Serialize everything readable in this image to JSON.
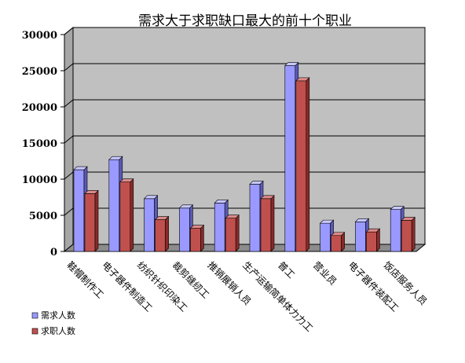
{
  "chart_data": {
    "type": "bar",
    "title": "需求大于求职缺口最大的前十个职业",
    "categories": [
      "鞋帽制作工",
      "电子器件制造工",
      "纺织针织印染工",
      "裁剪缝纫工",
      "推销展销人员",
      "生产运输简单体力力工",
      "普工",
      "营业员",
      "电子器件装配工",
      "饭店服务人员"
    ],
    "series": [
      {
        "name": "需求人数",
        "values": [
          11300,
          12700,
          7300,
          6000,
          6700,
          9300,
          25700,
          3900,
          4100,
          5800
        ]
      },
      {
        "name": "求职人数",
        "values": [
          8000,
          9600,
          4400,
          3200,
          4600,
          7300,
          23600,
          2200,
          2700,
          4300
        ]
      }
    ],
    "ylim": [
      0,
      30000
    ],
    "yticks": [
      "0",
      "5000",
      "10000",
      "15000",
      "20000",
      "25000",
      "30000"
    ],
    "grid": true,
    "legend_position": "bottom-left",
    "colors": {
      "series1_front": "#9999ff",
      "series1_side": "#5a5ab8",
      "series1_top": "#c8c8ff",
      "series2_front": "#c0504d",
      "series2_side": "#8a2a28",
      "series2_top": "#dc8a88",
      "wall": "#c0c0c0",
      "wall_side": "#a6a6a6",
      "floor": "#8c8c8c",
      "grid": "#000000"
    }
  }
}
